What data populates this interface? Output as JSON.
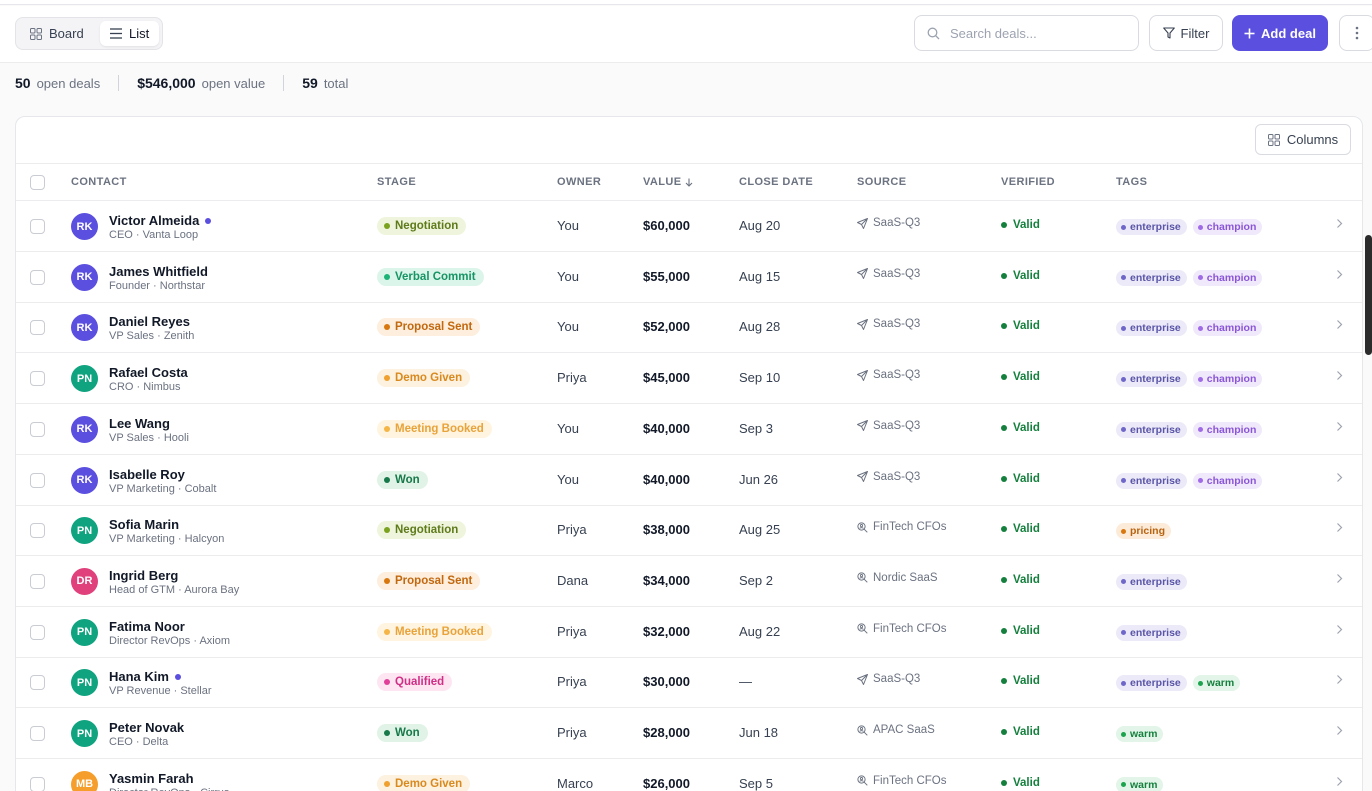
{
  "toolbar": {
    "view_board": "Board",
    "view_list": "List",
    "search_placeholder": "Search deals...",
    "filter_label": "Filter",
    "add_label": "Add deal"
  },
  "stats": {
    "open_deals": "50",
    "open_deals_label": "open deals",
    "open_value": "$546,000",
    "open_value_label": "open value",
    "total": "59",
    "total_label": "total"
  },
  "table": {
    "columns_button": "Columns",
    "headers": {
      "contact": "CONTACT",
      "stage": "STAGE",
      "owner": "OWNER",
      "value": "VALUE",
      "close_date": "CLOSE DATE",
      "source": "SOURCE",
      "verified": "VERIFIED",
      "tags": "TAGS"
    },
    "rows": [
      {
        "initials": "RK",
        "avatar_color": "#5b4fe0",
        "name": "Victor Almeida",
        "unread": true,
        "subtitle": "CEO · Vanta Loop",
        "stage": "Negotiation",
        "stage_kind": "negotiation",
        "owner": "You",
        "value": "$60,000",
        "close": "Aug 20",
        "source": "SaaS-Q3",
        "source_icon": "send-icon",
        "verified": "Valid",
        "tags": [
          "enterprise",
          "champion"
        ]
      },
      {
        "initials": "RK",
        "avatar_color": "#5b4fe0",
        "name": "James Whitfield",
        "unread": false,
        "subtitle": "Founder · Northstar",
        "stage": "Verbal Commit",
        "stage_kind": "verbal",
        "owner": "You",
        "value": "$55,000",
        "close": "Aug 15",
        "source": "SaaS-Q3",
        "source_icon": "send-icon",
        "verified": "Valid",
        "tags": [
          "enterprise",
          "champion"
        ]
      },
      {
        "initials": "RK",
        "avatar_color": "#5b4fe0",
        "name": "Daniel Reyes",
        "unread": false,
        "subtitle": "VP Sales · Zenith",
        "stage": "Proposal Sent",
        "stage_kind": "proposal",
        "owner": "You",
        "value": "$52,000",
        "close": "Aug 28",
        "source": "SaaS-Q3",
        "source_icon": "send-icon",
        "verified": "Valid",
        "tags": [
          "enterprise",
          "champion"
        ]
      },
      {
        "initials": "PN",
        "avatar_color": "#0fa37f",
        "name": "Rafael Costa",
        "unread": false,
        "subtitle": "CRO · Nimbus",
        "stage": "Demo Given",
        "stage_kind": "demo",
        "owner": "Priya",
        "value": "$45,000",
        "close": "Sep 10",
        "source": "SaaS-Q3",
        "source_icon": "send-icon",
        "verified": "Valid",
        "tags": [
          "enterprise",
          "champion"
        ]
      },
      {
        "initials": "RK",
        "avatar_color": "#5b4fe0",
        "name": "Lee Wang",
        "unread": false,
        "subtitle": "VP Sales · Hooli",
        "stage": "Meeting Booked",
        "stage_kind": "meeting",
        "owner": "You",
        "value": "$40,000",
        "close": "Sep 3",
        "source": "SaaS-Q3",
        "source_icon": "send-icon",
        "verified": "Valid",
        "tags": [
          "enterprise",
          "champion"
        ]
      },
      {
        "initials": "RK",
        "avatar_color": "#5b4fe0",
        "name": "Isabelle Roy",
        "unread": false,
        "subtitle": "VP Marketing · Cobalt",
        "stage": "Won",
        "stage_kind": "won",
        "owner": "You",
        "value": "$40,000",
        "close": "Jun 26",
        "source": "SaaS-Q3",
        "source_icon": "send-icon",
        "verified": "Valid",
        "tags": [
          "enterprise",
          "champion"
        ]
      },
      {
        "initials": "PN",
        "avatar_color": "#0fa37f",
        "name": "Sofia Marin",
        "unread": false,
        "subtitle": "VP Marketing · Halcyon",
        "stage": "Negotiation",
        "stage_kind": "negotiation",
        "owner": "Priya",
        "value": "$38,000",
        "close": "Aug 25",
        "source": "FinTech CFOs",
        "source_icon": "search-person-icon",
        "verified": "Valid",
        "tags": [
          "pricing"
        ]
      },
      {
        "initials": "DR",
        "avatar_color": "#e0407b",
        "name": "Ingrid Berg",
        "unread": false,
        "subtitle": "Head of GTM · Aurora Bay",
        "stage": "Proposal Sent",
        "stage_kind": "proposal",
        "owner": "Dana",
        "value": "$34,000",
        "close": "Sep 2",
        "source": "Nordic SaaS",
        "source_icon": "search-person-icon",
        "verified": "Valid",
        "tags": [
          "enterprise"
        ]
      },
      {
        "initials": "PN",
        "avatar_color": "#0fa37f",
        "name": "Fatima Noor",
        "unread": false,
        "subtitle": "Director RevOps · Axiom",
        "stage": "Meeting Booked",
        "stage_kind": "meeting",
        "owner": "Priya",
        "value": "$32,000",
        "close": "Aug 22",
        "source": "FinTech CFOs",
        "source_icon": "search-person-icon",
        "verified": "Valid",
        "tags": [
          "enterprise"
        ]
      },
      {
        "initials": "PN",
        "avatar_color": "#0fa37f",
        "name": "Hana Kim",
        "unread": true,
        "subtitle": "VP Revenue · Stellar",
        "stage": "Qualified",
        "stage_kind": "qualified",
        "owner": "Priya",
        "value": "$30,000",
        "close": "—",
        "source": "SaaS-Q3",
        "source_icon": "send-icon",
        "verified": "Valid",
        "tags": [
          "enterprise",
          "warm"
        ]
      },
      {
        "initials": "PN",
        "avatar_color": "#0fa37f",
        "name": "Peter Novak",
        "unread": false,
        "subtitle": "CEO · Delta",
        "stage": "Won",
        "stage_kind": "won",
        "owner": "Priya",
        "value": "$28,000",
        "close": "Jun 18",
        "source": "APAC SaaS",
        "source_icon": "search-person-icon",
        "verified": "Valid",
        "tags": [
          "warm"
        ]
      },
      {
        "initials": "MB",
        "avatar_color": "#f59e2b",
        "name": "Yasmin Farah",
        "unread": false,
        "subtitle": "Director RevOps · Cirrus",
        "stage": "Demo Given",
        "stage_kind": "demo",
        "owner": "Marco",
        "value": "$26,000",
        "close": "Sep 5",
        "source": "FinTech CFOs",
        "source_icon": "search-person-icon",
        "verified": "Valid",
        "tags": [
          "warm"
        ]
      }
    ]
  },
  "colors": {
    "accent": "#5b4fe0",
    "stages": {
      "negotiation": {
        "bg": "#eef5dc",
        "fg": "#5f7a1a",
        "dot": "#7aa21e"
      },
      "verbal": {
        "bg": "#dcf5ea",
        "fg": "#169465",
        "dot": "#1bb378"
      },
      "proposal": {
        "bg": "#fdeedd",
        "fg": "#c2680f",
        "dot": "#d9770f"
      },
      "demo": {
        "bg": "#fdf1e0",
        "fg": "#d98a1e",
        "dot": "#f0a02e"
      },
      "meeting": {
        "bg": "#fff4df",
        "fg": "#e8a33a",
        "dot": "#f5b547"
      },
      "won": {
        "bg": "#e0f3e6",
        "fg": "#17784a",
        "dot": "#17784a"
      },
      "qualified": {
        "bg": "#fde6f2",
        "fg": "#d02f86",
        "dot": "#e0409a"
      }
    },
    "tags": {
      "enterprise": {
        "bg": "#eceaf8",
        "fg": "#5a55a8",
        "dot": "#6e67c9"
      },
      "champion": {
        "bg": "#f0e9fb",
        "fg": "#8a55d6",
        "dot": "#a06be6"
      },
      "pricing": {
        "bg": "#fdebd9",
        "fg": "#b8630f",
        "dot": "#d9770f"
      },
      "warm": {
        "bg": "#e2f5e8",
        "fg": "#15803d",
        "dot": "#1ba34e"
      }
    }
  }
}
